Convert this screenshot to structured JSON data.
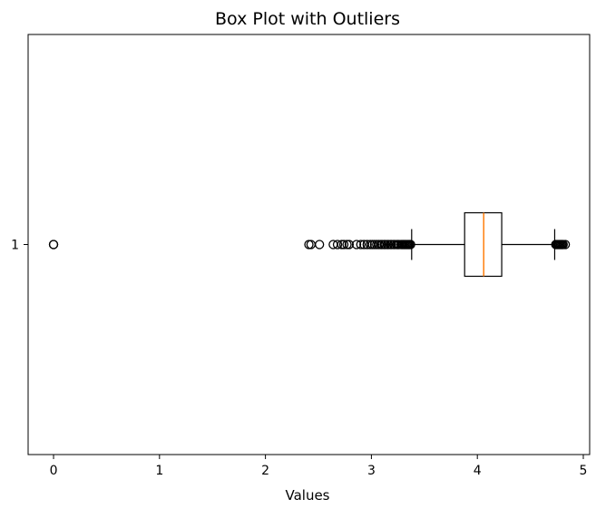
{
  "chart_data": {
    "type": "boxplot",
    "orientation": "horizontal",
    "title": "Box Plot with Outliers",
    "xlabel": "Values",
    "ylabel": "",
    "xlim": [
      -0.24,
      5.06
    ],
    "xticks": [
      0,
      1,
      2,
      3,
      4,
      5
    ],
    "yticks": [
      "1"
    ],
    "grid": false,
    "series": [
      {
        "category": "1",
        "whisker_low": 3.38,
        "q1": 3.88,
        "median": 4.06,
        "q3": 4.23,
        "whisker_high": 4.73,
        "outliers_low": [
          0.0,
          0.0,
          2.41,
          2.43,
          2.51,
          2.64,
          2.68,
          2.72,
          2.74,
          2.77,
          2.79,
          2.86,
          2.9,
          2.93,
          2.96,
          2.99,
          3.01,
          3.03,
          3.05,
          3.07,
          3.09,
          3.1,
          3.12,
          3.13,
          3.15,
          3.16,
          3.18,
          3.19,
          3.21,
          3.22,
          3.24,
          3.25,
          3.26,
          3.28,
          3.29,
          3.3,
          3.31,
          3.32,
          3.33,
          3.34,
          3.35,
          3.36,
          3.37
        ],
        "outliers_high": [
          4.74,
          4.75,
          4.76,
          4.77,
          4.78,
          4.79,
          4.8,
          4.81,
          4.83
        ]
      }
    ],
    "colors": {
      "box": "#000000",
      "median": "#ff7f0e",
      "outlier": "#000000"
    }
  }
}
